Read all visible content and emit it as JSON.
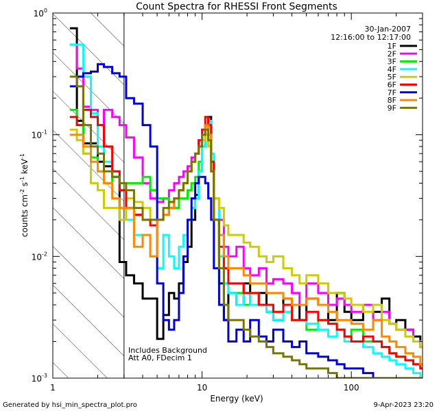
{
  "chart_data": {
    "type": "line",
    "title": "Count Spectra for RHESSI Front Segments",
    "xlabel": "Energy (keV)",
    "ylabel_main": "counts cm",
    "ylabel_exp1": "-2",
    "ylabel_mid": " s",
    "ylabel_exp2": "-1",
    "ylabel_tail": " keV",
    "ylabel_exp3": "-1",
    "xscale": "log",
    "yscale": "log",
    "xlim": [
      1,
      300
    ],
    "ylim": [
      0.001,
      1
    ],
    "x_ticks": [
      {
        "value": 1,
        "label": "1"
      },
      {
        "value": 10,
        "label": "10"
      },
      {
        "value": 100,
        "label": "100"
      }
    ],
    "y_ticks": [
      {
        "value": 1,
        "base": "10",
        "exp": "0"
      },
      {
        "value": 0.1,
        "base": "10",
        "exp": "-1"
      },
      {
        "value": 0.01,
        "base": "10",
        "exp": "-2"
      },
      {
        "value": 0.001,
        "base": "10",
        "exp": "-3"
      }
    ],
    "shaded_region": {
      "x_from": 1,
      "x_to": 3.0,
      "pattern": "diagonal-hatch"
    },
    "date": "30-Jan-2007",
    "time_range": "12:16:00 to 12:17:00",
    "note_line1": "Includes Background",
    "note_line2": "Att A0, FDecim 1",
    "series": [
      {
        "name": "1F",
        "color": "#000000",
        "x": [
          1.3,
          1.45,
          1.6,
          1.8,
          2.0,
          2.2,
          2.5,
          2.8,
          3.1,
          3.5,
          4.0,
          4.5,
          5.0,
          5.5,
          6.0,
          6.5,
          7.0,
          7.5,
          8.0,
          8.5,
          9.0,
          9.5,
          10.0,
          10.5,
          11.0,
          11.5,
          12.0,
          13.0,
          14.0,
          15.0,
          17,
          19,
          21,
          24,
          27,
          30,
          35,
          40,
          45,
          50,
          60,
          70,
          80,
          90,
          100,
          120,
          140,
          160,
          180,
          200,
          230,
          260,
          290
        ],
        "y": [
          0.75,
          0.13,
          0.085,
          0.085,
          0.06,
          0.055,
          0.045,
          0.009,
          0.007,
          0.006,
          0.0045,
          0.0045,
          0.0021,
          0.0033,
          0.005,
          0.0045,
          0.006,
          0.009,
          0.012,
          0.02,
          0.032,
          0.05,
          0.08,
          0.12,
          0.14,
          0.06,
          0.02,
          0.006,
          0.003,
          0.005,
          0.004,
          0.006,
          0.004,
          0.005,
          0.0035,
          0.003,
          0.0045,
          0.004,
          0.003,
          0.0045,
          0.004,
          0.003,
          0.005,
          0.0035,
          0.003,
          0.004,
          0.0035,
          0.0045,
          0.0028,
          0.003,
          0.0025,
          0.0022,
          0.0018
        ]
      },
      {
        "name": "2F",
        "color": "#ff00ff",
        "x": [
          1.3,
          1.45,
          1.6,
          1.8,
          2.0,
          2.2,
          2.5,
          2.8,
          3.1,
          3.5,
          4.0,
          4.5,
          5.0,
          5.5,
          6.0,
          6.5,
          7.0,
          7.5,
          8.0,
          8.5,
          9.0,
          9.5,
          10.0,
          10.5,
          11.0,
          11.5,
          12.0,
          13.0,
          14.0,
          15.0,
          17,
          19,
          21,
          24,
          27,
          30,
          35,
          40,
          45,
          50,
          60,
          70,
          80,
          90,
          100,
          120,
          140,
          160,
          180,
          200,
          230,
          260,
          290
        ],
        "y": [
          0.55,
          0.35,
          0.17,
          0.16,
          0.12,
          0.16,
          0.14,
          0.12,
          0.095,
          0.065,
          0.04,
          0.03,
          0.028,
          0.03,
          0.035,
          0.04,
          0.045,
          0.05,
          0.055,
          0.065,
          0.07,
          0.09,
          0.1,
          0.11,
          0.09,
          0.06,
          0.03,
          0.02,
          0.012,
          0.01,
          0.012,
          0.008,
          0.007,
          0.008,
          0.006,
          0.0065,
          0.006,
          0.005,
          0.004,
          0.006,
          0.005,
          0.004,
          0.0045,
          0.004,
          0.0035,
          0.004,
          0.003,
          0.0035,
          0.0028,
          0.0025,
          0.0025,
          0.002,
          0.0018
        ]
      },
      {
        "name": "3F",
        "color": "#00ee00",
        "x": [
          1.3,
          1.45,
          1.6,
          1.8,
          2.0,
          2.2,
          2.5,
          2.8,
          3.1,
          3.5,
          4.0,
          4.5,
          5.0,
          5.5,
          6.0,
          6.5,
          7.0,
          7.5,
          8.0,
          8.5,
          9.0,
          9.5,
          10.0,
          10.5,
          11.0,
          11.5,
          12.0,
          13.0,
          14.0,
          15.0,
          17,
          19,
          21,
          24,
          27,
          30,
          35,
          40,
          45,
          50,
          60,
          70,
          80,
          90,
          100,
          120,
          140,
          160,
          180,
          200,
          230,
          260,
          290
        ],
        "y": [
          0.16,
          0.12,
          0.07,
          0.065,
          0.05,
          0.04,
          0.045,
          0.035,
          0.04,
          0.04,
          0.045,
          0.035,
          0.03,
          0.03,
          0.028,
          0.025,
          0.03,
          0.03,
          0.035,
          0.04,
          0.045,
          0.06,
          0.08,
          0.1,
          0.1,
          0.06,
          0.02,
          0.01,
          0.006,
          0.005,
          0.005,
          0.004,
          0.005,
          0.004,
          0.004,
          0.0035,
          0.0035,
          0.003,
          0.003,
          0.0025,
          0.003,
          0.0028,
          0.0025,
          0.0022,
          0.0025,
          0.002,
          0.002,
          0.0018,
          0.0016,
          0.0015,
          0.0014,
          0.0013,
          0.0012
        ]
      },
      {
        "name": "4F",
        "color": "#00ffff",
        "x": [
          1.3,
          1.45,
          1.6,
          1.8,
          2.0,
          2.2,
          2.5,
          2.8,
          3.1,
          3.5,
          4.0,
          4.5,
          5.0,
          5.5,
          6.0,
          6.5,
          7.0,
          7.5,
          8.0,
          8.5,
          9.0,
          9.5,
          10.0,
          10.5,
          11.0,
          11.5,
          12.0,
          13.0,
          14.0,
          15.0,
          17,
          19,
          21,
          24,
          27,
          30,
          35,
          40,
          45,
          50,
          60,
          70,
          80,
          90,
          100,
          120,
          140,
          160,
          180,
          200,
          230,
          260,
          290
        ],
        "y": [
          0.55,
          0.55,
          0.3,
          0.15,
          0.08,
          0.06,
          0.05,
          0.04,
          0.02,
          0.015,
          0.015,
          0.01,
          0.008,
          0.015,
          0.01,
          0.008,
          0.012,
          0.015,
          0.02,
          0.025,
          0.03,
          0.05,
          0.08,
          0.1,
          0.13,
          0.07,
          0.03,
          0.01,
          0.006,
          0.005,
          0.004,
          0.005,
          0.004,
          0.004,
          0.0035,
          0.003,
          0.0035,
          0.003,
          0.003,
          0.0028,
          0.0025,
          0.0022,
          0.0025,
          0.002,
          0.002,
          0.0018,
          0.0016,
          0.0015,
          0.0014,
          0.0013,
          0.0012,
          0.0011,
          0.001
        ]
      },
      {
        "name": "5F",
        "color": "#cccc00",
        "x": [
          1.3,
          1.45,
          1.6,
          1.8,
          2.0,
          2.2,
          2.5,
          2.8,
          3.1,
          3.5,
          4.0,
          4.5,
          5.0,
          5.5,
          6.0,
          6.5,
          7.0,
          7.5,
          8.0,
          8.5,
          9.0,
          9.5,
          10.0,
          10.5,
          11.0,
          11.5,
          12.0,
          13.0,
          14.0,
          15.0,
          17,
          19,
          21,
          24,
          27,
          30,
          35,
          40,
          45,
          50,
          60,
          70,
          80,
          90,
          100,
          120,
          140,
          160,
          180,
          200,
          230,
          260,
          290
        ],
        "y": [
          0.11,
          0.09,
          0.07,
          0.04,
          0.035,
          0.025,
          0.025,
          0.02,
          0.03,
          0.028,
          0.025,
          0.02,
          0.02,
          0.022,
          0.025,
          0.03,
          0.035,
          0.04,
          0.05,
          0.06,
          0.07,
          0.08,
          0.09,
          0.1,
          0.08,
          0.06,
          0.03,
          0.025,
          0.018,
          0.015,
          0.015,
          0.013,
          0.012,
          0.01,
          0.009,
          0.01,
          0.008,
          0.007,
          0.006,
          0.007,
          0.006,
          0.005,
          0.005,
          0.0045,
          0.004,
          0.0035,
          0.004,
          0.003,
          0.0028,
          0.0025,
          0.0022,
          0.002,
          0.0018
        ]
      },
      {
        "name": "6F",
        "color": "#ff0000",
        "x": [
          1.3,
          1.45,
          1.6,
          1.8,
          2.0,
          2.2,
          2.5,
          2.8,
          3.1,
          3.5,
          4.0,
          4.5,
          5.0,
          5.5,
          6.0,
          6.5,
          7.0,
          7.5,
          8.0,
          8.5,
          9.0,
          9.5,
          10.0,
          10.5,
          11.0,
          11.5,
          12.0,
          13.0,
          14.0,
          15.0,
          17,
          19,
          21,
          24,
          27,
          30,
          35,
          40,
          45,
          50,
          60,
          70,
          80,
          90,
          100,
          120,
          140,
          160,
          180,
          200,
          230,
          260,
          290
        ],
        "y": [
          0.14,
          0.12,
          0.16,
          0.14,
          0.12,
          0.08,
          0.05,
          0.035,
          0.025,
          0.022,
          0.02,
          0.018,
          0.02,
          0.022,
          0.025,
          0.03,
          0.035,
          0.04,
          0.05,
          0.06,
          0.07,
          0.09,
          0.11,
          0.14,
          0.12,
          0.06,
          0.02,
          0.012,
          0.008,
          0.006,
          0.006,
          0.005,
          0.005,
          0.004,
          0.004,
          0.0035,
          0.004,
          0.003,
          0.003,
          0.0035,
          0.003,
          0.0028,
          0.0025,
          0.0022,
          0.002,
          0.0022,
          0.002,
          0.0018,
          0.0016,
          0.0015,
          0.0014,
          0.0013,
          0.0012
        ]
      },
      {
        "name": "7F",
        "color": "#0000dd",
        "x": [
          1.3,
          1.45,
          1.6,
          1.8,
          2.0,
          2.2,
          2.5,
          2.8,
          3.1,
          3.5,
          4.0,
          4.5,
          5.0,
          5.5,
          6.0,
          6.5,
          7.0,
          7.5,
          8.0,
          8.5,
          9.0,
          9.5,
          10.0,
          10.5,
          11.0,
          11.5,
          12.0,
          13.0,
          14.0,
          15.0,
          17,
          19,
          21,
          24,
          27,
          30,
          35,
          40,
          45,
          50,
          60,
          70,
          80,
          90,
          100,
          120,
          140,
          160,
          180,
          200,
          230,
          260,
          290
        ],
        "y": [
          0.25,
          0.3,
          0.32,
          0.33,
          0.38,
          0.36,
          0.32,
          0.3,
          0.2,
          0.18,
          0.12,
          0.08,
          0.006,
          0.003,
          0.0025,
          0.003,
          0.005,
          0.01,
          0.02,
          0.03,
          0.04,
          0.045,
          0.045,
          0.04,
          0.03,
          0.02,
          0.008,
          0.004,
          0.003,
          0.002,
          0.0025,
          0.002,
          0.003,
          0.0022,
          0.002,
          0.0025,
          0.002,
          0.0018,
          0.002,
          0.0016,
          0.0015,
          0.0014,
          0.0013,
          0.0012,
          0.0012,
          0.0011,
          0.001,
          0.001,
          0.001,
          0.001,
          0.001,
          0.001,
          0.001
        ]
      },
      {
        "name": "8F",
        "color": "#ff8800",
        "x": [
          1.3,
          1.45,
          1.6,
          1.8,
          2.0,
          2.2,
          2.5,
          2.8,
          3.1,
          3.5,
          4.0,
          4.5,
          5.0,
          5.5,
          6.0,
          6.5,
          7.0,
          7.5,
          8.0,
          8.5,
          9.0,
          9.5,
          10.0,
          10.5,
          11.0,
          11.5,
          12.0,
          13.0,
          14.0,
          15.0,
          17,
          19,
          21,
          24,
          27,
          30,
          35,
          40,
          45,
          50,
          60,
          70,
          80,
          90,
          100,
          120,
          140,
          160,
          180,
          200,
          230,
          260,
          290
        ],
        "y": [
          0.1,
          0.1,
          0.08,
          0.06,
          0.05,
          0.04,
          0.03,
          0.025,
          0.025,
          0.012,
          0.015,
          0.01,
          0.02,
          0.022,
          0.025,
          0.03,
          0.035,
          0.04,
          0.05,
          0.06,
          0.07,
          0.08,
          0.1,
          0.12,
          0.1,
          0.05,
          0.02,
          0.015,
          0.01,
          0.008,
          0.008,
          0.007,
          0.006,
          0.006,
          0.005,
          0.005,
          0.0045,
          0.004,
          0.004,
          0.0045,
          0.004,
          0.0035,
          0.003,
          0.003,
          0.0028,
          0.0025,
          0.003,
          0.0022,
          0.002,
          0.0018,
          0.0016,
          0.0015,
          0.0013
        ]
      },
      {
        "name": "9F",
        "color": "#777700",
        "x": [
          1.3,
          1.45,
          1.6,
          1.8,
          2.0,
          2.2,
          2.5,
          2.8,
          3.1,
          3.5,
          4.0,
          4.5,
          5.0,
          5.5,
          6.0,
          6.5,
          7.0,
          7.5,
          8.0,
          8.5,
          9.0,
          9.5,
          10.0,
          10.5,
          11.0,
          11.5,
          12.0,
          13.0,
          14.0,
          15.0,
          17,
          19,
          21,
          24,
          27,
          30,
          35,
          40,
          45,
          50,
          60,
          70,
          80,
          90,
          100,
          120,
          140,
          160,
          180,
          200,
          230,
          260,
          290
        ],
        "y": [
          0.3,
          0.25,
          0.12,
          0.08,
          0.07,
          0.05,
          0.045,
          0.04,
          0.035,
          0.025,
          0.02,
          0.02,
          0.02,
          0.025,
          0.028,
          0.03,
          0.035,
          0.04,
          0.05,
          0.06,
          0.07,
          0.08,
          0.1,
          0.11,
          0.09,
          0.05,
          0.02,
          0.008,
          0.004,
          0.003,
          0.003,
          0.0025,
          0.0022,
          0.002,
          0.0018,
          0.0016,
          0.0015,
          0.0014,
          0.0013,
          0.0012,
          0.0012,
          0.0011,
          0.001,
          0.001,
          0.001,
          0.001,
          0.001,
          0.001,
          0.001,
          0.001,
          0.001,
          0.001,
          0.001
        ]
      }
    ]
  },
  "footer": {
    "left": "Generated by hsi_min_spectra_plot.pro",
    "right": "9-Apr-2023 23:20"
  }
}
